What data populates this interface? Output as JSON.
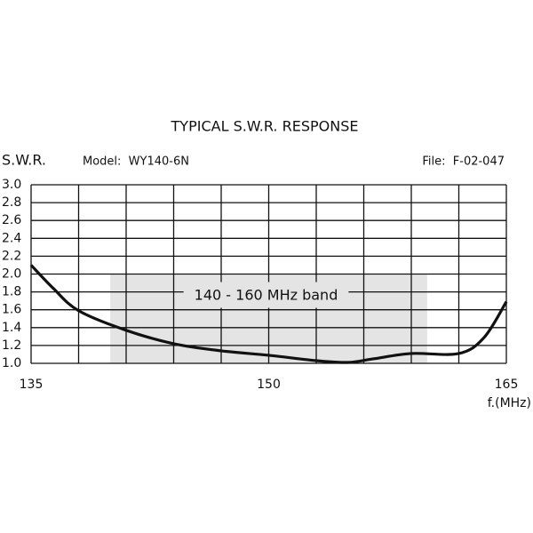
{
  "chart_data": {
    "type": "line",
    "title": "TYPICAL S.W.R. RESPONSE",
    "y_label": "S.W.R.",
    "model": "Model:  WY140-6N",
    "file": "File:  F-02-047",
    "x_label": "f.(MHz)",
    "x": [
      135,
      136.4,
      138,
      141,
      144,
      147,
      150,
      153,
      155,
      156.6,
      159,
      162,
      163.6,
      165
    ],
    "values": [
      2.1,
      1.84,
      1.59,
      1.37,
      1.22,
      1.14,
      1.09,
      1.03,
      1.01,
      1.05,
      1.11,
      1.11,
      1.29,
      1.69
    ],
    "color": "#111111",
    "xlim": [
      135,
      165
    ],
    "ylim": [
      1,
      3
    ],
    "xticks": [
      135,
      150,
      165
    ],
    "xgrid": [
      135,
      138,
      141,
      144,
      147,
      150,
      153,
      156,
      159,
      162,
      165
    ],
    "yticks": [
      {
        "value": 1,
        "label": "1.0"
      },
      1.2,
      1.4,
      1.6,
      1.8,
      {
        "value": 2,
        "label": "2.0"
      },
      2.2,
      2.4,
      2.6,
      2.8,
      {
        "value": 3,
        "label": "3.0"
      }
    ],
    "grid": true,
    "band": {
      "label": "140 - 160 MHz band",
      "xlim": [
        140,
        160
      ],
      "ylim": [
        1,
        2
      ],
      "color": "#e4e4e4"
    }
  }
}
